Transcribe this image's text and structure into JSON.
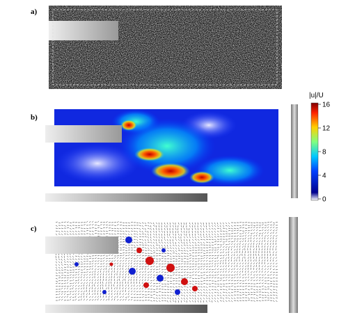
{
  "panels": [
    {
      "label": "a)"
    },
    {
      "label": "b)"
    },
    {
      "label": "c)"
    }
  ],
  "colorbar": {
    "label": "|u|/U",
    "ticks": [
      "16",
      "12",
      "8",
      "4",
      "0"
    ]
  }
}
